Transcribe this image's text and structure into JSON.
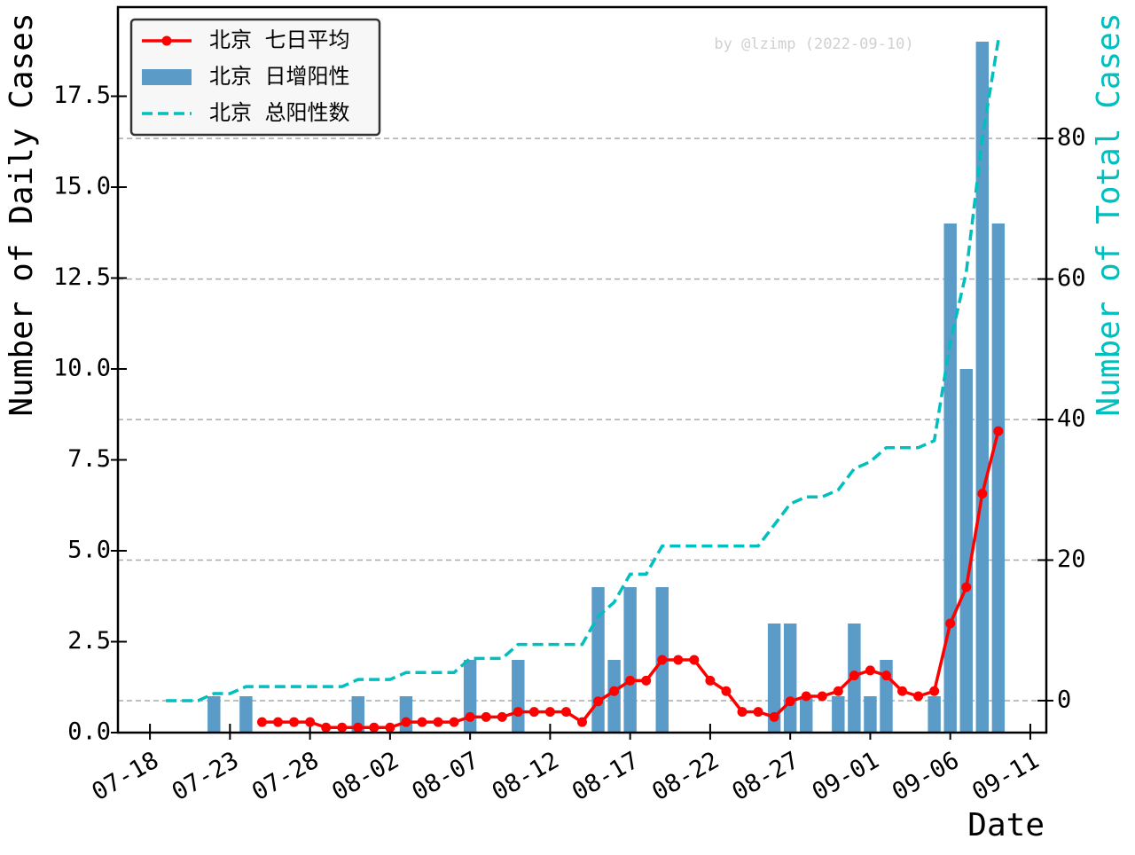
{
  "chart_data": {
    "type": "combo",
    "xlabel": "Date",
    "ylabel": "Number of Daily Cases",
    "y2label": "Number of Total Cases",
    "y2label_color": "#00bfbf",
    "watermark": "by @lzimp (2022-09-10)",
    "legend": "upper left",
    "grid": true,
    "x": [
      "07-19",
      "07-20",
      "07-21",
      "07-22",
      "07-23",
      "07-24",
      "07-25",
      "07-26",
      "07-27",
      "07-28",
      "07-29",
      "07-30",
      "07-31",
      "08-01",
      "08-02",
      "08-03",
      "08-04",
      "08-05",
      "08-06",
      "08-07",
      "08-08",
      "08-09",
      "08-10",
      "08-11",
      "08-12",
      "08-13",
      "08-14",
      "08-15",
      "08-16",
      "08-17",
      "08-18",
      "08-19",
      "08-20",
      "08-21",
      "08-22",
      "08-23",
      "08-24",
      "08-25",
      "08-26",
      "08-27",
      "08-28",
      "08-29",
      "08-30",
      "08-31",
      "09-01",
      "09-02",
      "09-03",
      "09-04",
      "09-05",
      "09-06",
      "09-07",
      "09-08",
      "09-09"
    ],
    "xlim": [
      "07-16",
      "09-12"
    ],
    "xticks": [
      "07-18",
      "07-23",
      "07-28",
      "08-02",
      "08-07",
      "08-12",
      "08-17",
      "08-22",
      "08-27",
      "09-01",
      "09-06",
      "09-11"
    ],
    "ylim": [
      0,
      19.95
    ],
    "yticks": [
      {
        "value": 0,
        "label": "0.0"
      },
      2.5,
      {
        "value": 5,
        "label": "5.0"
      },
      7.5,
      {
        "value": 10,
        "label": "10.0"
      },
      12.5,
      {
        "value": 15,
        "label": "15.0"
      },
      17.5
    ],
    "y2lim": [
      -4.55,
      98.7
    ],
    "y2ticks": [
      0,
      20,
      40,
      60,
      80
    ],
    "series": [
      {
        "name": "北京 七日平均",
        "type": "line",
        "marker": true,
        "color": "#ff0000",
        "values": [
          null,
          null,
          null,
          null,
          null,
          null,
          0.29,
          0.29,
          0.29,
          0.29,
          0.14,
          0.14,
          0.14,
          0.14,
          0.14,
          0.29,
          0.29,
          0.29,
          0.29,
          0.43,
          0.43,
          0.43,
          0.57,
          0.57,
          0.57,
          0.57,
          0.29,
          0.86,
          1.14,
          1.43,
          1.43,
          2.0,
          2.0,
          2.0,
          1.43,
          1.14,
          0.57,
          0.57,
          0.43,
          0.86,
          1.0,
          1.0,
          1.14,
          1.57,
          1.71,
          1.57,
          1.14,
          1.0,
          1.14,
          3.0,
          4.0,
          6.57,
          8.29
        ]
      },
      {
        "name": "北京 日增阳性",
        "type": "bar",
        "color": "#5b9bc8",
        "values": [
          0,
          0,
          0,
          1,
          0,
          1,
          0,
          0,
          0,
          0,
          0,
          0,
          1,
          0,
          0,
          1,
          0,
          0,
          0,
          2,
          0,
          0,
          2,
          0,
          0,
          0,
          0,
          4,
          2,
          4,
          0,
          4,
          0,
          0,
          0,
          0,
          0,
          0,
          3,
          3,
          1,
          0,
          1,
          3,
          1,
          2,
          0,
          0,
          1,
          14,
          10,
          19,
          14
        ]
      },
      {
        "name": "北京 总阳性数",
        "type": "line",
        "dashed": true,
        "axis": "y2",
        "color": "#00bfbf",
        "values": [
          0,
          0,
          0,
          1,
          1,
          2,
          2,
          2,
          2,
          2,
          2,
          2,
          3,
          3,
          3,
          4,
          4,
          4,
          4,
          6,
          6,
          6,
          8,
          8,
          8,
          8,
          8,
          12,
          14,
          18,
          18,
          22,
          22,
          22,
          22,
          22,
          22,
          22,
          25,
          28,
          29,
          29,
          30,
          33,
          34,
          36,
          36,
          36,
          37,
          51,
          61,
          80,
          94
        ]
      }
    ]
  }
}
